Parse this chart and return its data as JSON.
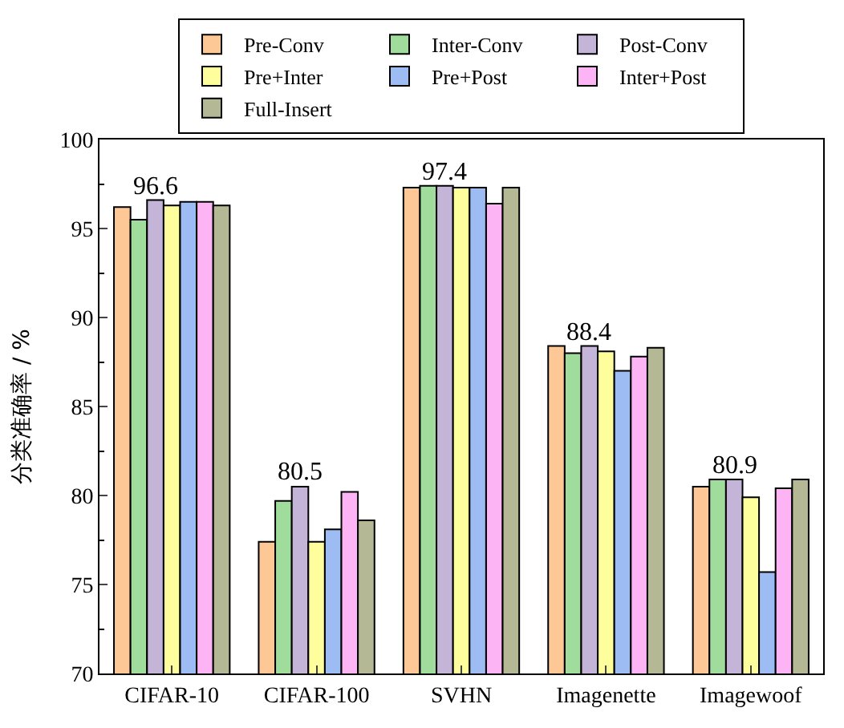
{
  "chart_data": {
    "type": "bar",
    "ylabel": "分类准确率 / %",
    "categories": [
      "CIFAR-10",
      "CIFAR-100",
      "SVHN",
      "Imagenette",
      "Imagewoof"
    ],
    "series": [
      {
        "name": "Pre-Conv",
        "color": "#fdc896",
        "values": [
          96.2,
          77.4,
          97.3,
          88.4,
          80.5
        ]
      },
      {
        "name": "Inter-Conv",
        "color": "#a0dc9c",
        "values": [
          95.5,
          79.7,
          97.4,
          88.0,
          80.9
        ]
      },
      {
        "name": "Post-Conv",
        "color": "#c3b4d8",
        "values": [
          96.6,
          80.5,
          97.4,
          88.4,
          80.9
        ]
      },
      {
        "name": "Pre+Inter",
        "color": "#fefe9c",
        "values": [
          96.3,
          77.4,
          97.3,
          88.1,
          79.9
        ]
      },
      {
        "name": "Pre+Post",
        "color": "#9ebcf4",
        "values": [
          96.5,
          78.1,
          97.3,
          87.0,
          75.7
        ]
      },
      {
        "name": "Inter+Post",
        "color": "#fdb4f4",
        "values": [
          96.5,
          80.2,
          96.4,
          87.8,
          80.4
        ]
      },
      {
        "name": "Full-Insert",
        "color": "#b4b894",
        "values": [
          96.3,
          78.6,
          97.3,
          88.3,
          80.9
        ]
      }
    ],
    "annotations": [
      "96.6",
      "80.5",
      "97.4",
      "88.4",
      "80.9"
    ],
    "ylim": [
      70,
      100
    ],
    "yticks": [
      70,
      75,
      80,
      85,
      90,
      95,
      100
    ],
    "legend": "top"
  }
}
